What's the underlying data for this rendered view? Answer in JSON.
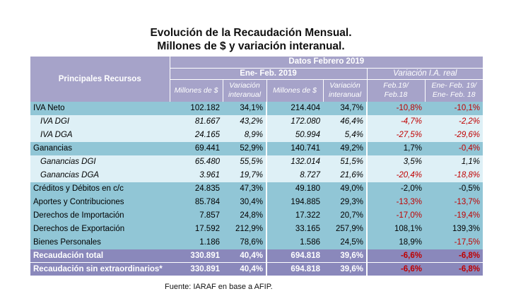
{
  "title_line1": "Evolución de la Recaudación Mensual.",
  "title_line2": "Millones de $ y variación interanual.",
  "header": {
    "main_label": "Principales Recursos",
    "group_top": "Datos Febrero 2019",
    "group_mid_left": "Ene- Feb. 2019",
    "group_mid_right": "Variación I.A. real",
    "col1": "Millones de $",
    "col2_l1": "Variación",
    "col2_l2": "interanual",
    "col3": "Millones de $",
    "col4_l1": "Variación",
    "col4_l2": "interanual",
    "col5_l1": "Feb.19/",
    "col5_l2": "Feb.18",
    "col6_l1": "Ene- Feb. 19/",
    "col6_l2": "Ene- Feb. 18"
  },
  "rows": [
    {
      "label": "IVA Neto",
      "c1": "102.182",
      "c2": "34,1%",
      "c3": "214.404",
      "c4": "34,7%",
      "c5": "-10,8%",
      "c6": "-10,1%"
    },
    {
      "label": "IVA DGI",
      "c1": "81.667",
      "c2": "43,2%",
      "c3": "172.080",
      "c4": "46,4%",
      "c5": "-4,7%",
      "c6": "-2,2%"
    },
    {
      "label": "IVA DGA",
      "c1": "24.165",
      "c2": "8,9%",
      "c3": "50.994",
      "c4": "5,4%",
      "c5": "-27,5%",
      "c6": "-29,6%"
    },
    {
      "label": "Ganancias",
      "c1": "69.441",
      "c2": "52,9%",
      "c3": "140.741",
      "c4": "49,2%",
      "c5": "1,7%",
      "c6": "-0,4%"
    },
    {
      "label": "Ganancias DGI",
      "c1": "65.480",
      "c2": "55,5%",
      "c3": "132.014",
      "c4": "51,5%",
      "c5": "3,5%",
      "c6": "1,1%"
    },
    {
      "label": "Ganancias DGA",
      "c1": "3.961",
      "c2": "19,7%",
      "c3": "8.727",
      "c4": "21,6%",
      "c5": "-20,4%",
      "c6": "-18,8%"
    },
    {
      "label": "Créditos y Débitos en c/c",
      "c1": "24.835",
      "c2": "47,3%",
      "c3": "49.180",
      "c4": "49,0%",
      "c5": "-2,0%",
      "c6": "-0,5%"
    },
    {
      "label": "Aportes y Contribuciones",
      "c1": "85.784",
      "c2": "30,4%",
      "c3": "194.885",
      "c4": "29,3%",
      "c5": "-13,3%",
      "c6": "-13,7%"
    },
    {
      "label": "Derechos de Importación",
      "c1": "7.857",
      "c2": "24,8%",
      "c3": "17.322",
      "c4": "20,7%",
      "c5": "-17,0%",
      "c6": "-19,4%"
    },
    {
      "label": "Derechos de Exportación",
      "c1": "17.592",
      "c2": "212,9%",
      "c3": "33.165",
      "c4": "257,9%",
      "c5": "108,1%",
      "c6": "139,3%"
    },
    {
      "label": "Bienes Personales",
      "c1": "1.186",
      "c2": "78,6%",
      "c3": "1.586",
      "c4": "24,5%",
      "c5": "18,9%",
      "c6": "-17,5%"
    }
  ],
  "totals": [
    {
      "label": "Recaudación total",
      "c1": "330.891",
      "c2": "40,4%",
      "c3": "694.818",
      "c4": "39,6%",
      "c5": "-6,6%",
      "c6": "-6,8%"
    },
    {
      "label": "Recaudación sin extraordinarios*",
      "c1": "330.891",
      "c2": "40,4%",
      "c3": "694.818",
      "c4": "39,6%",
      "c5": "-6,6%",
      "c6": "-6,8%"
    }
  ],
  "source": "Fuente: IARAF en base a AFIP."
}
